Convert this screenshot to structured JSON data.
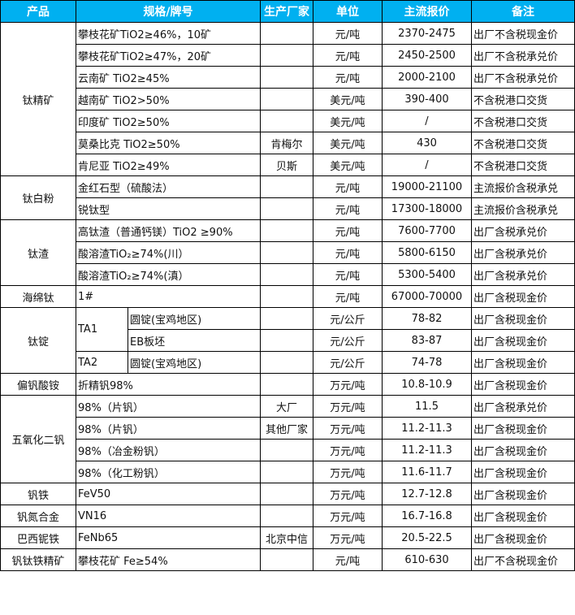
{
  "header_color": "#00B0F0",
  "headers": [
    "产品",
    "规格/牌号",
    "生产厂家",
    "单位",
    "主流报价",
    "备注"
  ],
  "groups": [
    {
      "product": "钛精矿",
      "rows": [
        {
          "spec": "攀枝花矿TiO2≥46%，10矿",
          "maker": "",
          "unit": "元/吨",
          "price": "2370-2475",
          "note": "出厂不含税现金价"
        },
        {
          "spec": "攀枝花矿TiO2≥47%，20矿",
          "maker": "",
          "unit": "元/吨",
          "price": "2450-2500",
          "note": "出厂不含税承兑价"
        },
        {
          "spec": "云南矿 TiO2≥45%",
          "maker": "",
          "unit": "元/吨",
          "price": "2000-2100",
          "note": "出厂不含税承兑价"
        },
        {
          "spec": "越南矿 TiO2>50%",
          "maker": "",
          "unit": "美元/吨",
          "price": "390-400",
          "note": "不含税港口交货"
        },
        {
          "spec": "印度矿 TiO2≥50%",
          "maker": "",
          "unit": "美元/吨",
          "price": "/",
          "note": "不含税港口交货"
        },
        {
          "spec": "莫桑比克 TiO2≥50%",
          "maker": "肯梅尔",
          "unit": "美元/吨",
          "price": "430",
          "note": "不含税港口交货"
        },
        {
          "spec": "肯尼亚 TiO2≥49%",
          "maker": "贝斯",
          "unit": "美元/吨",
          "price": "/",
          "note": "不含税港口交货"
        }
      ]
    },
    {
      "product": "钛白粉",
      "rows": [
        {
          "spec": "金红石型（硫酸法）",
          "maker": "",
          "unit": "元/吨",
          "price": "19000-21100",
          "note": "主流报价含税承兑"
        },
        {
          "spec": "锐钛型",
          "maker": "",
          "unit": "元/吨",
          "price": "17300-18000",
          "note": "主流报价含税承兑"
        }
      ]
    },
    {
      "product": "钛渣",
      "rows": [
        {
          "spec": "高钛渣（普通钙镁）TiO2 ≥90%",
          "maker": "",
          "unit": "元/吨",
          "price": "7600-7700",
          "note": "出厂含税承兑价"
        },
        {
          "spec": "酸溶渣TiO₂≥74%(川）",
          "maker": "",
          "unit": "元/吨",
          "price": "5800-6150",
          "note": "出厂含税承兑价"
        },
        {
          "spec": "酸溶渣TiO₂≥74%(滇）",
          "maker": "",
          "unit": "元/吨",
          "price": "5300-5400",
          "note": "出厂含税承兑价"
        }
      ]
    },
    {
      "product": "海绵钛",
      "rows": [
        {
          "spec": "1#",
          "maker": "",
          "unit": "元/吨",
          "price": "67000-70000",
          "note": "出厂含税现金价"
        }
      ]
    },
    {
      "product": "钛锭",
      "rows": [
        {
          "grade": "TA1",
          "grade_span": 2,
          "spec": "圆锭(宝鸡地区)",
          "maker": "",
          "unit": "元/公斤",
          "price": "78-82",
          "note": "出厂含税现金价"
        },
        {
          "spec": "EB板坯",
          "maker": "",
          "unit": "元/公斤",
          "price": "83-87",
          "note": "出厂含税现金价"
        },
        {
          "grade": "TA2",
          "grade_span": 1,
          "spec": "圆锭(宝鸡地区)",
          "maker": "",
          "unit": "元/公斤",
          "price": "74-78",
          "note": "出厂含税现金价"
        }
      ]
    },
    {
      "product": "偏钒酸铵",
      "rows": [
        {
          "spec": "折精钒98%",
          "maker": "",
          "unit": "万元/吨",
          "price": "10.8-10.9",
          "note": "出厂含税现金价"
        }
      ]
    },
    {
      "product": "五氧化二钒",
      "rows": [
        {
          "spec": "98%（片钒）",
          "maker": "大厂",
          "unit": "万元/吨",
          "price": "11.5",
          "note": "出厂含税承兑价"
        },
        {
          "spec": "98%（片钒）",
          "maker": "其他厂家",
          "unit": "万元/吨",
          "price": "11.2-11.3",
          "note": "出厂含税现金价"
        },
        {
          "spec": "98%（冶金粉钒）",
          "maker": "",
          "unit": "万元/吨",
          "price": "11.2-11.3",
          "note": "出厂含税现金价"
        },
        {
          "spec": "98%（化工粉钒）",
          "maker": "",
          "unit": "万元/吨",
          "price": "11.6-11.7",
          "note": "出厂含税现金价"
        }
      ]
    },
    {
      "product": "钒铁",
      "rows": [
        {
          "spec": "FeV50",
          "maker": "",
          "unit": "万元/吨",
          "price": "12.7-12.8",
          "note": "出厂含税现金价"
        }
      ]
    },
    {
      "product": "钒氮合金",
      "rows": [
        {
          "spec": "VN16",
          "maker": "",
          "unit": "万元/吨",
          "price": "16.7-16.8",
          "note": "出厂含税现金价"
        }
      ]
    },
    {
      "product": "巴西铌铁",
      "rows": [
        {
          "spec": "FeNb65",
          "maker": "北京中信",
          "unit": "万元/吨",
          "price": "20.5-22.5",
          "note": "出厂含税现金价"
        }
      ]
    },
    {
      "product": "钒钛铁精矿",
      "rows": [
        {
          "spec": "攀枝花矿 Fe≥54%",
          "maker": "",
          "unit": "元/吨",
          "price": "610-630",
          "note": "出厂不含税现金价"
        }
      ]
    }
  ]
}
